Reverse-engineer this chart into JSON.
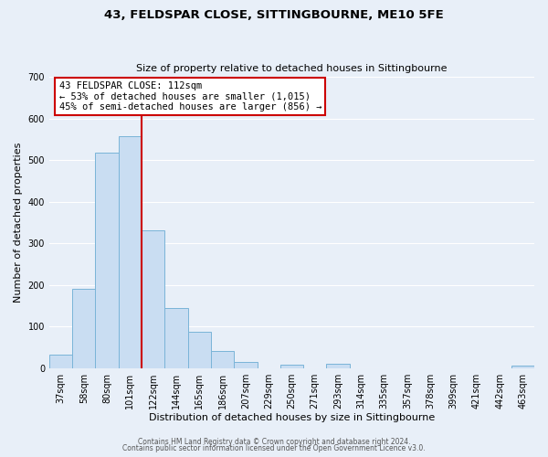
{
  "title": "43, FELDSPAR CLOSE, SITTINGBOURNE, ME10 5FE",
  "subtitle": "Size of property relative to detached houses in Sittingbourne",
  "xlabel": "Distribution of detached houses by size in Sittingbourne",
  "ylabel": "Number of detached properties",
  "footnote1": "Contains HM Land Registry data © Crown copyright and database right 2024.",
  "footnote2": "Contains public sector information licensed under the Open Government Licence v3.0.",
  "bar_labels": [
    "37sqm",
    "58sqm",
    "80sqm",
    "101sqm",
    "122sqm",
    "144sqm",
    "165sqm",
    "186sqm",
    "207sqm",
    "229sqm",
    "250sqm",
    "271sqm",
    "293sqm",
    "314sqm",
    "335sqm",
    "357sqm",
    "378sqm",
    "399sqm",
    "421sqm",
    "442sqm",
    "463sqm"
  ],
  "bar_values": [
    33,
    190,
    518,
    558,
    330,
    145,
    87,
    42,
    14,
    0,
    8,
    0,
    10,
    0,
    0,
    0,
    0,
    0,
    0,
    0,
    5
  ],
  "bar_color": "#c9ddf2",
  "bar_edge_color": "#7ab4d8",
  "vline_color": "#cc0000",
  "vline_pos": 3.5,
  "annotation_title": "43 FELDSPAR CLOSE: 112sqm",
  "annotation_line1": "← 53% of detached houses are smaller (1,015)",
  "annotation_line2": "45% of semi-detached houses are larger (856) →",
  "annotation_box_facecolor": "#ffffff",
  "annotation_box_edgecolor": "#cc0000",
  "ylim": [
    0,
    700
  ],
  "yticks": [
    0,
    100,
    200,
    300,
    400,
    500,
    600,
    700
  ],
  "bg_color": "#e8eff8",
  "plot_bg_color": "#e8eff8",
  "grid_color": "#ffffff",
  "title_fontsize": 9.5,
  "subtitle_fontsize": 8,
  "ylabel_fontsize": 8,
  "xlabel_fontsize": 8,
  "tick_fontsize": 7,
  "ann_fontsize": 7.5,
  "footnote_fontsize": 5.5
}
